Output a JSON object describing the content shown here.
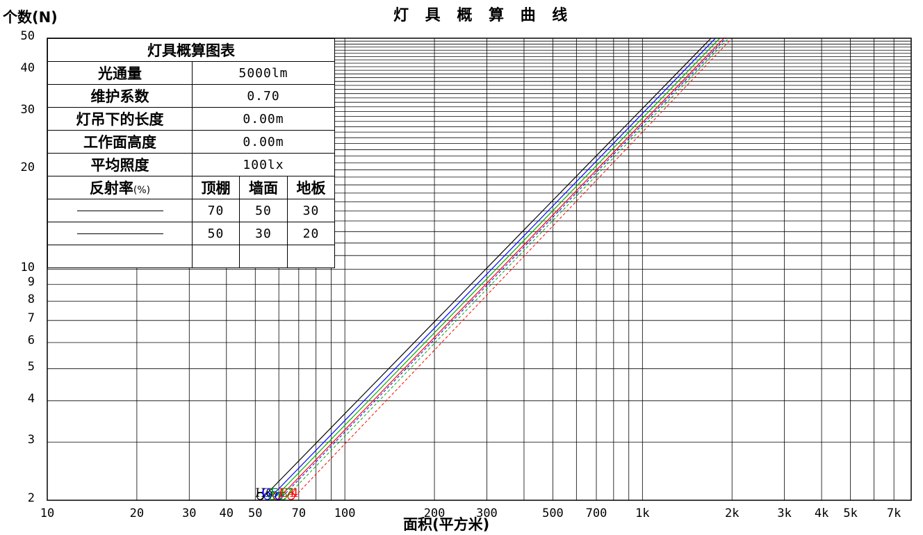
{
  "chart_data": {
    "type": "line",
    "title": "灯 具 概 算 曲 线",
    "xlabel": "面积(平方米)",
    "ylabel": "个数(N)",
    "x_scale": "log",
    "y_scale": "log",
    "xlim": [
      10,
      8000
    ],
    "ylim": [
      2,
      50
    ],
    "grid": true,
    "x_tick_labels": [
      {
        "v": 10,
        "t": "10"
      },
      {
        "v": 20,
        "t": "20"
      },
      {
        "v": 30,
        "t": "30"
      },
      {
        "v": 40,
        "t": "40"
      },
      {
        "v": 50,
        "t": "50"
      },
      {
        "v": 70,
        "t": "70"
      },
      {
        "v": 100,
        "t": "100"
      },
      {
        "v": 200,
        "t": "200"
      },
      {
        "v": 300,
        "t": "300"
      },
      {
        "v": 500,
        "t": "500"
      },
      {
        "v": 700,
        "t": "700"
      },
      {
        "v": 1000,
        "t": "1k"
      },
      {
        "v": 2000,
        "t": "2k"
      },
      {
        "v": 3000,
        "t": "3k"
      },
      {
        "v": 4000,
        "t": "4k"
      },
      {
        "v": 5000,
        "t": "5k"
      },
      {
        "v": 7000,
        "t": "7k"
      }
    ],
    "y_tick_labels": [
      {
        "v": 50,
        "t": "50"
      },
      {
        "v": 40,
        "t": "40"
      },
      {
        "v": 30,
        "t": "30"
      },
      {
        "v": 20,
        "t": "20"
      },
      {
        "v": 10,
        "t": "10"
      },
      {
        "v": 9,
        "t": "9"
      },
      {
        "v": 8,
        "t": "8"
      },
      {
        "v": 7,
        "t": "7"
      },
      {
        "v": 6,
        "t": "6"
      },
      {
        "v": 5,
        "t": "5"
      },
      {
        "v": 4,
        "t": "4"
      },
      {
        "v": 3,
        "t": "3"
      },
      {
        "v": 2,
        "t": "2"
      }
    ],
    "series": [
      {
        "color": "#000000",
        "style": "solid",
        "points": [
          [
            52,
            2
          ],
          [
            1700,
            50
          ]
        ]
      },
      {
        "color": "#0000ff",
        "style": "solid",
        "points": [
          [
            55,
            2
          ],
          [
            1760,
            50
          ]
        ]
      },
      {
        "color": "#00aa00",
        "style": "solid",
        "points": [
          [
            57,
            2
          ],
          [
            1820,
            50
          ]
        ]
      },
      {
        "color": "#ff0000",
        "style": "solid",
        "points": [
          [
            59,
            2
          ],
          [
            1880,
            50
          ]
        ]
      },
      {
        "color": "#0000ff",
        "style": "dashed",
        "points": [
          [
            60,
            2
          ],
          [
            1910,
            50
          ]
        ]
      },
      {
        "color": "#00aa00",
        "style": "dashed",
        "points": [
          [
            62,
            2
          ],
          [
            1950,
            50
          ]
        ]
      },
      {
        "color": "#ff0000",
        "style": "dashed",
        "points": [
          [
            66,
            2
          ],
          [
            2000,
            50
          ]
        ]
      }
    ],
    "lamp_labels": [
      {
        "text": "H6",
        "color": "#000000",
        "x": 50
      },
      {
        "text": "G5",
        "color": "#0000ff",
        "x": 52.5
      },
      {
        "text": "F4",
        "color": "#00aa00",
        "x": 56
      },
      {
        "text": "E4",
        "color": "#ff0000",
        "x": 60
      },
      {
        "text": "7",
        "color": "#00aa00",
        "x": 63
      },
      {
        "text": "4",
        "color": "#ff0000",
        "x": 66
      }
    ]
  },
  "table": {
    "title": "灯具概算图表",
    "rows": [
      {
        "key": "光通量",
        "value": "5000lm"
      },
      {
        "key": "维护系数",
        "value": "0.70"
      },
      {
        "key": "灯吊下的长度",
        "value": "0.00m"
      },
      {
        "key": "工作面高度",
        "value": "0.00m"
      },
      {
        "key": "平均照度",
        "value": "100lx"
      }
    ],
    "reflect_label": "反射率",
    "reflect_unit": "(%)",
    "reflect_cols": [
      "顶棚",
      "墙面",
      "地板"
    ],
    "reflect_rows": [
      [
        "70",
        "50",
        "30"
      ],
      [
        "50",
        "30",
        "20"
      ]
    ]
  }
}
